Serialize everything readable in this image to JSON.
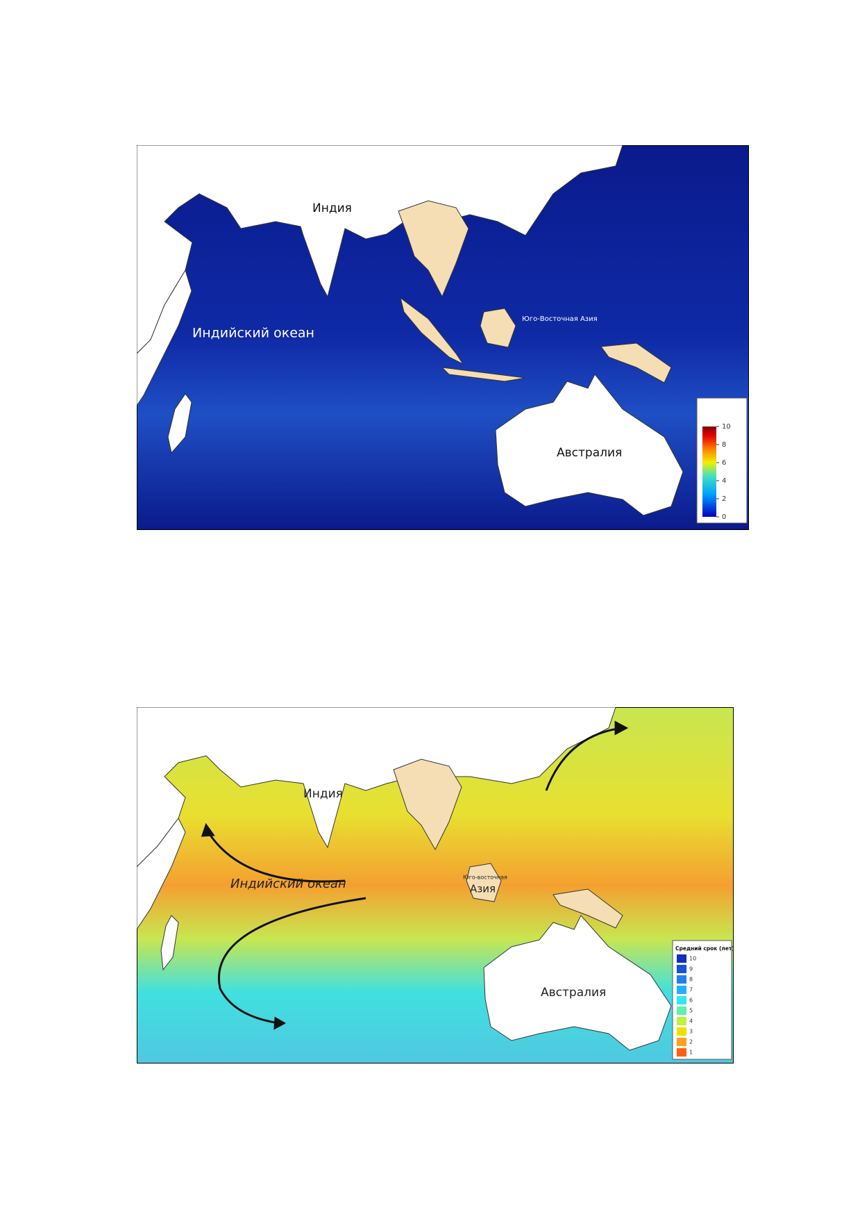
{
  "maps": [
    {
      "labels": {
        "india": "Индия",
        "ocean": "Индийский океан",
        "sea": "Юго-Восточная Азия",
        "australia": "Австралия"
      },
      "legend": {
        "ticks": [
          0,
          2,
          4,
          6,
          8,
          10
        ]
      }
    },
    {
      "labels": {
        "india": "Индия",
        "ocean": "Индийский океан",
        "sea_top": "Юго-восточная",
        "sea_bottom": "Азия",
        "australia": "Австралия"
      },
      "legend": {
        "title": "Средний срок (лет)",
        "ticks": [
          10,
          9,
          8,
          7,
          6,
          5,
          4,
          3,
          2,
          1
        ]
      }
    }
  ]
}
